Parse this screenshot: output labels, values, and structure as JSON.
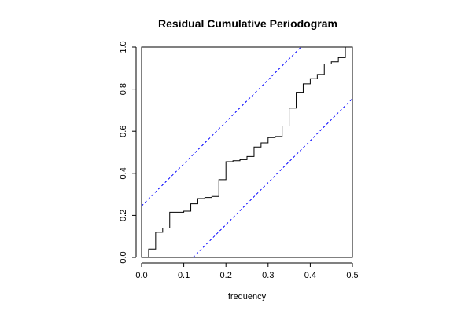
{
  "chart_data": {
    "type": "line",
    "title": "Residual Cumulative Periodogram",
    "xlabel": "frequency",
    "ylabel": "",
    "xlim": [
      0.0,
      0.5
    ],
    "ylim": [
      0.0,
      1.0
    ],
    "xticks": [
      "0.0",
      "0.1",
      "0.2",
      "0.3",
      "0.4",
      "0.5"
    ],
    "yticks": [
      "0.0",
      "0.2",
      "0.4",
      "0.6",
      "0.8",
      "1.0"
    ],
    "grid": false,
    "legend": "none",
    "series": [
      {
        "style": "step",
        "color": "#000000",
        "x": [
          0,
          0.0167,
          0.0333,
          0.05,
          0.0667,
          0.0833,
          0.1,
          0.1167,
          0.1333,
          0.15,
          0.1667,
          0.1833,
          0.2,
          0.2167,
          0.2333,
          0.25,
          0.2667,
          0.2833,
          0.3,
          0.3167,
          0.3333,
          0.35,
          0.3667,
          0.3833,
          0.4,
          0.4167,
          0.4333,
          0.45,
          0.4667,
          0.4833,
          0.5
        ],
        "y": [
          0,
          0.04,
          0.12,
          0.14,
          0.215,
          0.215,
          0.22,
          0.255,
          0.28,
          0.285,
          0.29,
          0.37,
          0.455,
          0.46,
          0.465,
          0.48,
          0.525,
          0.545,
          0.57,
          0.575,
          0.625,
          0.71,
          0.785,
          0.825,
          0.85,
          0.87,
          0.92,
          0.93,
          0.95,
          1.0,
          1.0
        ]
      },
      {
        "style": "dashed",
        "color": "#0000ff",
        "x": [
          0,
          0.378
        ],
        "y": [
          0.245,
          1.0
        ]
      },
      {
        "style": "dashed",
        "color": "#0000ff",
        "x": [
          0.122,
          0.5
        ],
        "y": [
          0.0,
          0.755
        ]
      }
    ]
  }
}
